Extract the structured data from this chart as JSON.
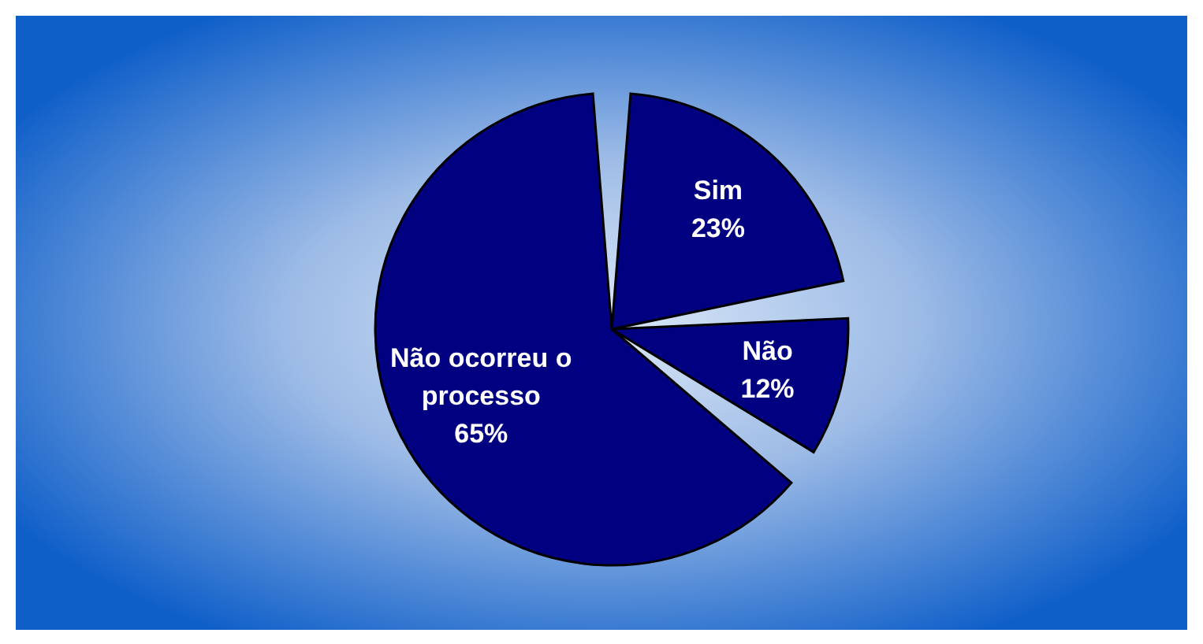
{
  "chart_data": {
    "type": "pie",
    "categories": [
      "Sim",
      "Não",
      "Não ocorreu o processo"
    ],
    "values": [
      23,
      12,
      65
    ],
    "colors": [
      "#000080",
      "#000080",
      "#000080"
    ],
    "value_labels": [
      "23%",
      "12%",
      "65%"
    ]
  }
}
